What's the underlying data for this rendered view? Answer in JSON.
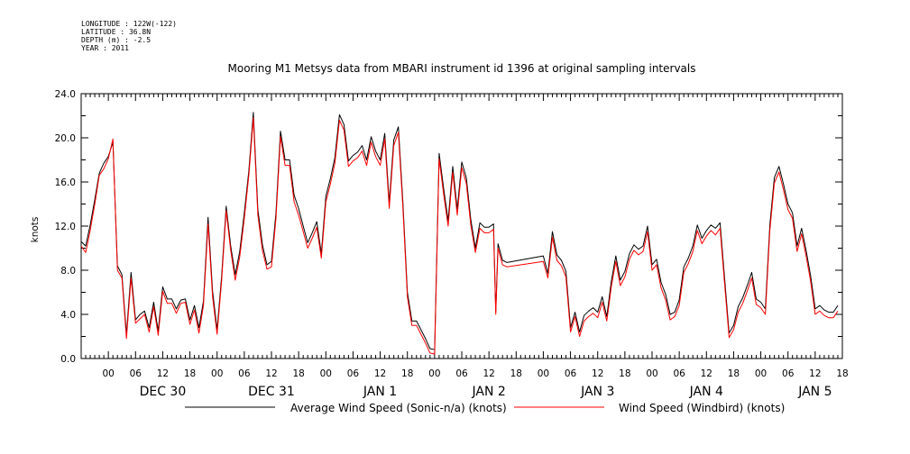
{
  "meta": {
    "longitude": "LONGITUDE : 122W(-122)",
    "latitude": "LATITUDE : 36.8N",
    "depth": "DEPTH (m) : -2.5",
    "year": "YEAR : 2011"
  },
  "chart_data": {
    "type": "line",
    "title": "Mooring M1 Metsys data from MBARI instrument id 1396 at original sampling intervals",
    "ylabel": "knots",
    "xlabel": "",
    "ylim": [
      0,
      24
    ],
    "yticks": [
      "0.0",
      "4.0",
      "8.0",
      "12.0",
      "16.0",
      "20.0",
      "24.0"
    ],
    "xlim": [
      -6,
      162
    ],
    "x_unit": "hours from 2010-12-30 00:00",
    "xtick_labels": [
      "00",
      "06",
      "12",
      "18",
      "00",
      "06",
      "12",
      "18",
      "00",
      "06",
      "12",
      "18",
      "00",
      "06",
      "12",
      "18",
      "00",
      "06",
      "12",
      "18",
      "00",
      "06",
      "12",
      "18",
      "00",
      "06",
      "12",
      "18"
    ],
    "day_labels": [
      {
        "label": "DEC 30",
        "hour": 12
      },
      {
        "label": "DEC 31",
        "hour": 36
      },
      {
        "label": "JAN  1",
        "hour": 60
      },
      {
        "label": "JAN  2",
        "hour": 84
      },
      {
        "label": "JAN  3",
        "hour": 108
      },
      {
        "label": "JAN  4",
        "hour": 132
      },
      {
        "label": "JAN  5",
        "hour": 156
      }
    ],
    "grid": false,
    "legend": "bottom",
    "series": [
      {
        "name": "Average Wind Speed (Sonic-n/a) (knots)",
        "color": "#000000",
        "x": [
          -6,
          -5,
          -4,
          -3,
          -2,
          -1,
          0,
          1,
          2,
          3,
          4,
          5,
          6,
          7,
          8,
          9,
          10,
          11,
          12,
          13,
          14,
          15,
          16,
          17,
          18,
          19,
          20,
          21,
          22,
          23,
          24,
          25,
          26,
          27,
          28,
          29,
          30,
          31,
          32,
          33,
          34,
          35,
          36,
          37,
          38,
          39,
          40,
          41,
          42,
          43,
          44,
          45,
          46,
          47,
          48,
          49,
          50,
          51,
          52,
          53,
          54,
          55,
          56,
          57,
          58,
          59,
          60,
          61,
          62,
          63,
          64,
          65,
          66,
          67,
          68,
          69,
          70,
          71,
          72,
          73,
          74,
          75,
          76,
          77,
          78,
          79,
          80,
          81,
          82,
          83,
          84,
          85,
          85.5,
          86,
          87,
          88,
          96,
          97,
          98,
          99,
          100,
          101,
          102,
          103,
          104,
          105,
          106,
          107,
          108,
          109,
          110,
          111,
          112,
          113,
          114,
          115,
          116,
          117,
          118,
          119,
          120,
          121,
          122,
          123,
          124,
          125,
          126,
          127,
          128,
          129,
          130,
          131,
          132,
          133,
          134,
          135,
          136,
          137,
          138,
          139,
          140,
          141,
          142,
          143,
          144,
          145,
          146,
          147,
          148,
          149,
          150,
          151,
          152,
          153,
          154,
          155,
          156,
          157,
          158,
          159,
          160,
          161
        ],
        "y": [
          10.6,
          10.2,
          12.1,
          14.4,
          16.8,
          17.7,
          18.3,
          19.6,
          8.4,
          7.6,
          2.2,
          7.8,
          3.5,
          4.0,
          4.3,
          2.8,
          5.1,
          2.5,
          6.5,
          5.4,
          5.4,
          4.5,
          5.3,
          5.4,
          3.5,
          4.8,
          2.8,
          5.2,
          12.8,
          6.1,
          2.6,
          7.4,
          13.8,
          10.2,
          7.6,
          9.7,
          13.2,
          17.0,
          22.3,
          13.5,
          10.3,
          8.5,
          8.8,
          13.2,
          20.6,
          18.0,
          18.0,
          14.8,
          13.6,
          12.0,
          10.5,
          11.4,
          12.4,
          9.5,
          14.7,
          16.3,
          18.2,
          22.1,
          21.2,
          17.9,
          18.4,
          18.7,
          19.3,
          18.0,
          20.1,
          18.8,
          18.0,
          20.4,
          14.1,
          19.8,
          21.0,
          14.2,
          6.0,
          3.4,
          3.4,
          2.6,
          1.8,
          0.9,
          0.8,
          18.6,
          15.4,
          12.5,
          17.4,
          13.5,
          17.8,
          16.4,
          12.6,
          10.0,
          12.3,
          11.9,
          11.9,
          12.2,
          4.2,
          10.4,
          8.9,
          8.7,
          9.3,
          7.7,
          11.5,
          9.4,
          8.9,
          7.9,
          2.8,
          4.2,
          2.4,
          3.9,
          4.3,
          4.6,
          4.2,
          5.6,
          3.8,
          7.0,
          9.3,
          7.1,
          7.9,
          9.5,
          10.3,
          9.9,
          10.2,
          12.0,
          8.5,
          9.0,
          6.9,
          5.8,
          4.0,
          4.2,
          5.3,
          8.3,
          9.1,
          10.2,
          12.1,
          10.9,
          11.6,
          12.1,
          11.8,
          12.3,
          7.3,
          2.3,
          3.0,
          4.7,
          5.5,
          6.6,
          7.8,
          5.4,
          5.1,
          4.5,
          12.1,
          16.4,
          17.4,
          15.8,
          14.0,
          13.2,
          10.2,
          11.8,
          9.8,
          7.5,
          4.5,
          4.8,
          4.4,
          4.2,
          4.2,
          4.8
        ]
      },
      {
        "name": "Wind Speed (Windbird) (knots)",
        "color": "#ff0000",
        "x": [
          -6,
          -5,
          -4,
          -3,
          -2,
          -1,
          0,
          1,
          2,
          3,
          4,
          5,
          6,
          7,
          8,
          9,
          10,
          11,
          12,
          13,
          14,
          15,
          16,
          17,
          18,
          19,
          20,
          21,
          22,
          23,
          24,
          25,
          26,
          27,
          28,
          29,
          30,
          31,
          32,
          33,
          34,
          35,
          36,
          37,
          38,
          39,
          40,
          41,
          42,
          43,
          44,
          45,
          46,
          47,
          48,
          49,
          50,
          51,
          52,
          53,
          54,
          55,
          56,
          57,
          58,
          59,
          60,
          61,
          62,
          63,
          64,
          65,
          66,
          67,
          68,
          69,
          70,
          71,
          72,
          73,
          74,
          75,
          76,
          77,
          78,
          79,
          80,
          81,
          82,
          83,
          84,
          85,
          85.5,
          86,
          87,
          88,
          96,
          97,
          98,
          99,
          100,
          101,
          102,
          103,
          104,
          105,
          106,
          107,
          108,
          109,
          110,
          111,
          112,
          113,
          114,
          115,
          116,
          117,
          118,
          119,
          120,
          121,
          122,
          123,
          124,
          125,
          126,
          127,
          128,
          129,
          130,
          131,
          132,
          133,
          134,
          135,
          136,
          137,
          138,
          139,
          140,
          141,
          142,
          143,
          144,
          145,
          146,
          147,
          148,
          149,
          150,
          151,
          152,
          153,
          154,
          155,
          156,
          157,
          158,
          159,
          160,
          161
        ],
        "y": [
          10.2,
          9.6,
          11.6,
          14.0,
          16.6,
          17.2,
          18.1,
          19.9,
          8.0,
          7.3,
          1.8,
          7.3,
          3.2,
          3.6,
          4.0,
          2.4,
          4.7,
          2.1,
          6.1,
          5.0,
          5.0,
          4.1,
          5.0,
          5.1,
          3.1,
          4.4,
          2.3,
          4.8,
          12.2,
          5.6,
          2.2,
          7.0,
          13.4,
          9.8,
          7.1,
          9.2,
          12.7,
          16.6,
          21.8,
          13.0,
          9.8,
          8.1,
          8.3,
          12.7,
          20.1,
          17.5,
          17.5,
          14.2,
          13.0,
          11.5,
          10.0,
          10.9,
          11.9,
          9.1,
          14.2,
          15.8,
          17.7,
          21.6,
          20.7,
          17.4,
          17.9,
          18.2,
          18.8,
          17.5,
          19.6,
          18.3,
          17.5,
          19.9,
          13.6,
          19.3,
          20.5,
          13.7,
          5.6,
          3.0,
          3.0,
          2.2,
          1.4,
          0.5,
          0.4,
          18.1,
          14.9,
          12.0,
          16.9,
          13.0,
          17.3,
          15.9,
          12.1,
          9.6,
          11.8,
          11.4,
          11.4,
          11.7,
          4.0,
          10.0,
          8.5,
          8.3,
          8.8,
          7.3,
          11.0,
          8.9,
          8.4,
          7.4,
          2.4,
          3.8,
          2.0,
          3.4,
          3.8,
          4.1,
          3.7,
          5.1,
          3.4,
          6.5,
          8.8,
          6.6,
          7.4,
          9.0,
          9.8,
          9.4,
          9.7,
          11.5,
          8.0,
          8.5,
          6.4,
          5.3,
          3.5,
          3.8,
          4.8,
          7.8,
          8.6,
          9.7,
          11.6,
          10.4,
          11.1,
          11.6,
          11.2,
          11.8,
          6.8,
          1.9,
          2.6,
          4.2,
          5.0,
          6.1,
          7.3,
          4.9,
          4.6,
          4.0,
          11.6,
          15.9,
          16.9,
          15.3,
          13.5,
          12.7,
          9.7,
          11.3,
          9.3,
          7.0,
          4.0,
          4.3,
          3.9,
          3.7,
          3.7,
          4.3
        ]
      }
    ]
  }
}
